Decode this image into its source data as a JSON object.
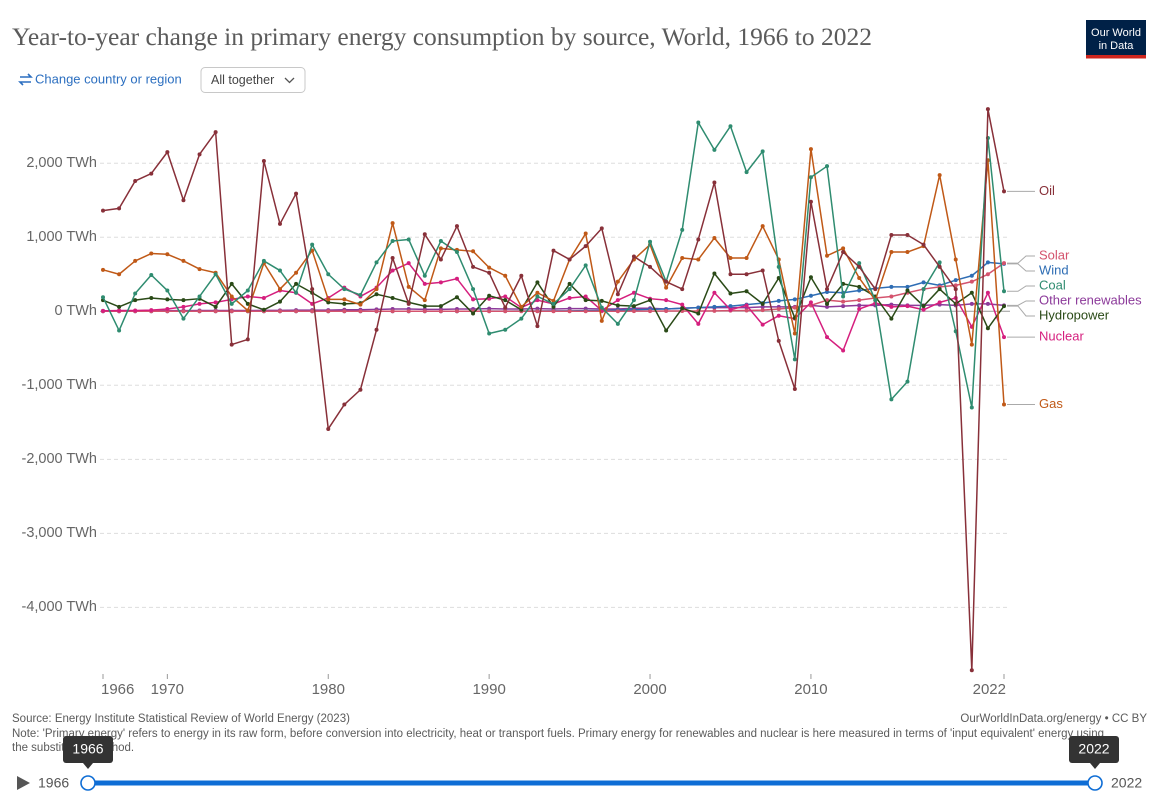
{
  "chart_data": {
    "type": "line",
    "title": "Year-to-year change in primary energy consumption by source, World, 1966 to 2022",
    "x": [
      1966,
      1967,
      1968,
      1969,
      1970,
      1971,
      1972,
      1973,
      1974,
      1975,
      1976,
      1977,
      1978,
      1979,
      1980,
      1981,
      1982,
      1983,
      1984,
      1985,
      1986,
      1987,
      1988,
      1989,
      1990,
      1991,
      1992,
      1993,
      1994,
      1995,
      1996,
      1997,
      1998,
      1999,
      2000,
      2001,
      2002,
      2003,
      2004,
      2005,
      2006,
      2007,
      2008,
      2009,
      2010,
      2011,
      2012,
      2013,
      2014,
      2015,
      2016,
      2017,
      2018,
      2019,
      2020,
      2021,
      2022
    ],
    "xlim": [
      1966,
      2022
    ],
    "xticks": [
      1966,
      1970,
      1980,
      1990,
      2000,
      2010,
      2022
    ],
    "ylim": [
      -4900,
      2800
    ],
    "yticks": [
      {
        "value": -4000,
        "label": "-4,000 TWh"
      },
      {
        "value": -3000,
        "label": "-3,000 TWh"
      },
      {
        "value": -2000,
        "label": "-2,000 TWh"
      },
      {
        "value": -1000,
        "label": "-1,000 TWh"
      },
      {
        "value": 0,
        "label": "0 TWh"
      },
      {
        "value": 1000,
        "label": "1,000 TWh"
      },
      {
        "value": 2000,
        "label": "2,000 TWh"
      }
    ],
    "grid": true,
    "series": [
      {
        "name": "Other renewables",
        "color": "#8c3a9a",
        "values": [
          5,
          5,
          5,
          5,
          8,
          8,
          10,
          10,
          10,
          10,
          12,
          12,
          15,
          15,
          15,
          20,
          20,
          25,
          30,
          30,
          25,
          25,
          30,
          30,
          35,
          30,
          30,
          35,
          30,
          35,
          35,
          30,
          30,
          40,
          40,
          30,
          40,
          50,
          50,
          50,
          50,
          60,
          60,
          60,
          80,
          60,
          70,
          80,
          80,
          90,
          80,
          80,
          90,
          80,
          100,
          100,
          80
        ]
      },
      {
        "name": "Wind",
        "color": "#2e6db4",
        "values": [
          0,
          0,
          0,
          0,
          0,
          0,
          0,
          0,
          0,
          0,
          0,
          0,
          0,
          0,
          0,
          0,
          0,
          0,
          0,
          0,
          0,
          0,
          1,
          1,
          2,
          2,
          3,
          4,
          5,
          6,
          8,
          10,
          15,
          20,
          25,
          30,
          40,
          50,
          60,
          70,
          90,
          110,
          140,
          160,
          210,
          260,
          250,
          280,
          310,
          330,
          330,
          390,
          350,
          420,
          480,
          660,
          640
        ]
      },
      {
        "name": "Solar",
        "color": "#d4536d",
        "values": [
          0,
          0,
          0,
          0,
          0,
          0,
          0,
          0,
          0,
          0,
          0,
          0,
          0,
          0,
          0,
          0,
          0,
          0,
          0,
          0,
          0,
          0,
          0,
          0,
          0,
          0,
          0,
          0,
          0,
          0,
          1,
          1,
          1,
          2,
          2,
          3,
          3,
          4,
          5,
          8,
          10,
          15,
          30,
          50,
          80,
          150,
          130,
          150,
          180,
          200,
          250,
          300,
          330,
          350,
          400,
          500,
          650
        ]
      },
      {
        "name": "Nuclear",
        "color": "#d51f7e",
        "values": [
          5,
          10,
          10,
          15,
          30,
          60,
          100,
          120,
          160,
          200,
          180,
          280,
          250,
          100,
          180,
          320,
          200,
          320,
          550,
          650,
          370,
          390,
          440,
          160,
          170,
          200,
          50,
          150,
          100,
          180,
          200,
          10,
          150,
          250,
          170,
          150,
          90,
          -170,
          250,
          20,
          80,
          -180,
          -60,
          -100,
          120,
          -350,
          -530,
          30,
          110,
          60,
          70,
          20,
          120,
          180,
          -210,
          250,
          -350
        ]
      },
      {
        "name": "Hydropower",
        "color": "#2a4a17",
        "values": [
          150,
          60,
          150,
          180,
          160,
          150,
          170,
          60,
          370,
          100,
          20,
          130,
          370,
          250,
          120,
          100,
          110,
          230,
          180,
          120,
          70,
          70,
          190,
          -30,
          210,
          150,
          20,
          390,
          60,
          370,
          150,
          140,
          80,
          70,
          150,
          -260,
          40,
          -30,
          510,
          240,
          270,
          100,
          450,
          -90,
          460,
          100,
          370,
          330,
          200,
          -100,
          280,
          70,
          300,
          100,
          250,
          -230,
          70
        ]
      },
      {
        "name": "Gas",
        "color": "#c05917",
        "values": [
          560,
          500,
          680,
          780,
          770,
          680,
          570,
          520,
          200,
          10,
          650,
          300,
          520,
          820,
          160,
          160,
          90,
          300,
          1190,
          330,
          150,
          850,
          830,
          810,
          590,
          480,
          60,
          250,
          140,
          700,
          1050,
          -130,
          400,
          700,
          900,
          320,
          720,
          700,
          990,
          720,
          720,
          1150,
          700,
          -300,
          2190,
          750,
          850,
          450,
          150,
          800,
          800,
          880,
          1840,
          700,
          -450,
          2040,
          -1260
        ]
      },
      {
        "name": "Coal",
        "color": "#2f8c70",
        "values": [
          190,
          -260,
          240,
          490,
          280,
          -100,
          200,
          500,
          100,
          280,
          680,
          550,
          250,
          900,
          500,
          300,
          220,
          660,
          950,
          970,
          480,
          950,
          800,
          300,
          -300,
          -250,
          -100,
          200,
          100,
          300,
          620,
          50,
          -170,
          150,
          940,
          400,
          1100,
          2550,
          2180,
          2500,
          1880,
          2160,
          600,
          -650,
          1810,
          1960,
          200,
          650,
          150,
          -1190,
          -950,
          300,
          660,
          -270,
          -1300,
          2340,
          270
        ]
      },
      {
        "name": "Oil",
        "color": "#883039",
        "values": [
          1360,
          1390,
          1760,
          1860,
          2150,
          1500,
          2120,
          2420,
          -450,
          -380,
          2030,
          1180,
          1590,
          300,
          -1590,
          -1260,
          -1060,
          -250,
          720,
          100,
          1040,
          700,
          1150,
          600,
          520,
          50,
          480,
          -200,
          820,
          700,
          880,
          1120,
          230,
          740,
          600,
          400,
          300,
          970,
          1740,
          500,
          500,
          550,
          -400,
          -1050,
          1480,
          300,
          800,
          600,
          300,
          1030,
          1030,
          900,
          600,
          300,
          -4850,
          2730,
          1620
        ]
      }
    ]
  },
  "header": {
    "change_country": "Change country or region",
    "selector": "All together",
    "logo": [
      "Our World",
      "in Data"
    ]
  },
  "footer": {
    "source": "Source: Energy Institute Statistical Review of World Energy (2023)",
    "url": "OurWorldInData.org/energy • CC BY",
    "note": "Note: 'Primary energy' refers to energy in its raw form, before conversion into electricity, heat or transport fuels. Primary energy for renewables and nuclear is here measured in terms of 'input equivalent' energy using the substitution method."
  },
  "timeline": {
    "start": "1966",
    "end": "2022"
  }
}
